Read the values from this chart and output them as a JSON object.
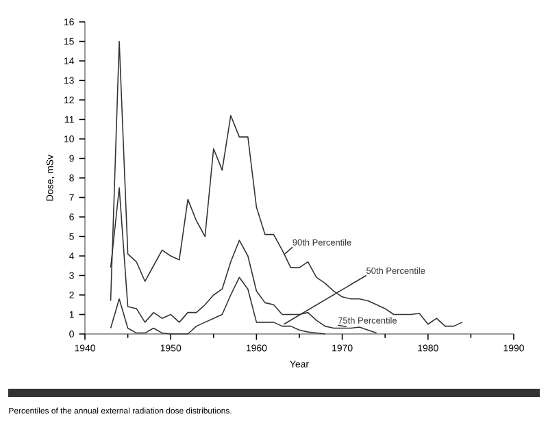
{
  "chart_data": {
    "type": "line",
    "xlabel": "Year",
    "ylabel": "Dose, mSv",
    "annotations": [
      "Percentiles of the annual external radiation dose distributions."
    ],
    "xlim": [
      1940,
      1990
    ],
    "xticks": [
      1940,
      1950,
      1960,
      1970,
      1980,
      1990
    ],
    "ylim": [
      0,
      16
    ],
    "yticks": [
      0,
      1,
      2,
      3,
      4,
      5,
      6,
      7,
      8,
      9,
      10,
      11,
      12,
      13,
      14,
      15,
      16
    ],
    "grid": false,
    "legend": false,
    "marker": "none",
    "line_style": "solid",
    "series": [
      {
        "name": "90th Percentile",
        "color": "#333333",
        "x": [
          1943,
          1944,
          1945,
          1946,
          1947,
          1948,
          1949,
          1950,
          1951,
          1952,
          1953,
          1954,
          1955,
          1956,
          1957,
          1958,
          1959,
          1960,
          1961,
          1962,
          1963,
          1964,
          1965,
          1966,
          1967,
          1968,
          1969,
          1970,
          1971,
          1972,
          1973,
          1974,
          1975,
          1976,
          1977,
          1978,
          1979,
          1980,
          1981,
          1982,
          1983,
          1984
        ],
        "values": [
          1.7,
          15,
          4.1,
          3.7,
          2.7,
          3.5,
          4.3,
          4.0,
          3.8,
          6.9,
          5.8,
          5.0,
          9.5,
          8.4,
          11.2,
          10.1,
          10.1,
          6.5,
          5.1,
          5.1,
          4.3,
          3.4,
          3.4,
          3.7,
          2.9,
          2.6,
          2.2,
          1.9,
          1.8,
          1.8,
          1.7,
          1.5,
          1.3,
          1.0,
          1.0,
          1.0,
          1.05,
          0.5,
          0.8,
          0.4,
          0.4,
          0.6
        ]
      },
      {
        "name": "75th Percentile",
        "color": "#333333",
        "x": [
          1943,
          1944,
          1945,
          1946,
          1947,
          1948,
          1949,
          1950,
          1951,
          1952,
          1953,
          1954,
          1955,
          1956,
          1957,
          1958,
          1959,
          1960,
          1961,
          1962,
          1963,
          1964,
          1965,
          1966,
          1967,
          1968,
          1969,
          1970,
          1971,
          1972,
          1973,
          1974
        ],
        "values": [
          3.4,
          7.5,
          1.4,
          1.3,
          0.6,
          1.1,
          0.8,
          1.0,
          0.6,
          1.1,
          1.1,
          1.5,
          2.0,
          2.3,
          3.7,
          4.8,
          4.0,
          2.2,
          1.6,
          1.5,
          1.0,
          1.0,
          1.0,
          1.1,
          0.7,
          0.4,
          0.3,
          0.3,
          0.3,
          0.35,
          0.2,
          0.05
        ]
      },
      {
        "name": "50th Percentile",
        "color": "#333333",
        "x": [
          1943,
          1944,
          1945,
          1946,
          1947,
          1948,
          1949,
          1950,
          1951,
          1952,
          1953,
          1954,
          1955,
          1956,
          1957,
          1958,
          1959,
          1960,
          1961,
          1962,
          1963,
          1964,
          1965,
          1966,
          1967,
          1968
        ],
        "values": [
          0.3,
          1.8,
          0.3,
          0.05,
          0.05,
          0.3,
          0.05,
          0,
          0,
          0,
          0.4,
          0.6,
          0.8,
          1.0,
          2.0,
          2.9,
          2.3,
          0.6,
          0.6,
          0.6,
          0.4,
          0.4,
          0.2,
          0.1,
          0.05,
          0
        ]
      }
    ]
  }
}
